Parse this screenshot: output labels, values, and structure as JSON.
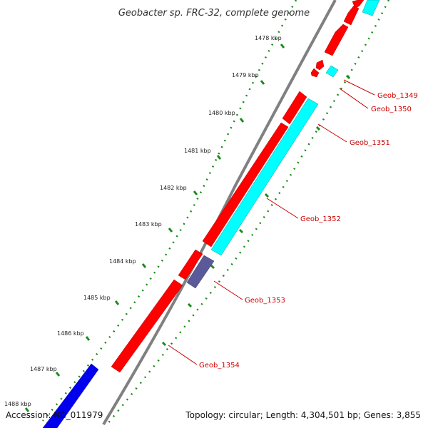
{
  "title": "Geobacter sp. FRC-32, complete genome",
  "footer": {
    "accession": "Accession: NC_011979",
    "summary": "Topology: circular; Length: 4,304,501 bp; Genes: 3,855"
  },
  "ticks": [
    "1478 kbp",
    "1479 kbp",
    "1480 kbp",
    "1481 kbp",
    "1482 kbp",
    "1483 kbp",
    "1484 kbp",
    "1485 kbp",
    "1486 kbp",
    "1487 kbp",
    "1488 kbp"
  ],
  "genes": [
    {
      "label": "Geob_1349",
      "color": "#ff0000"
    },
    {
      "label": "Geob_1350",
      "color": "#ff0000"
    },
    {
      "label": "Geob_1351",
      "color": "#00ffff"
    },
    {
      "label": "Geob_1352",
      "color": "#ff0000"
    },
    {
      "label": "Geob_1353",
      "color": "#5a5a9a"
    },
    {
      "label": "Geob_1354",
      "color": "#ff0000"
    }
  ],
  "colors": {
    "forward_strand": "#ff0000",
    "reverse_strand": "#00ffff",
    "rna": "#0000ee",
    "tick": "#1a8a1a",
    "backbone": "#888888",
    "label": "#cc0000"
  }
}
